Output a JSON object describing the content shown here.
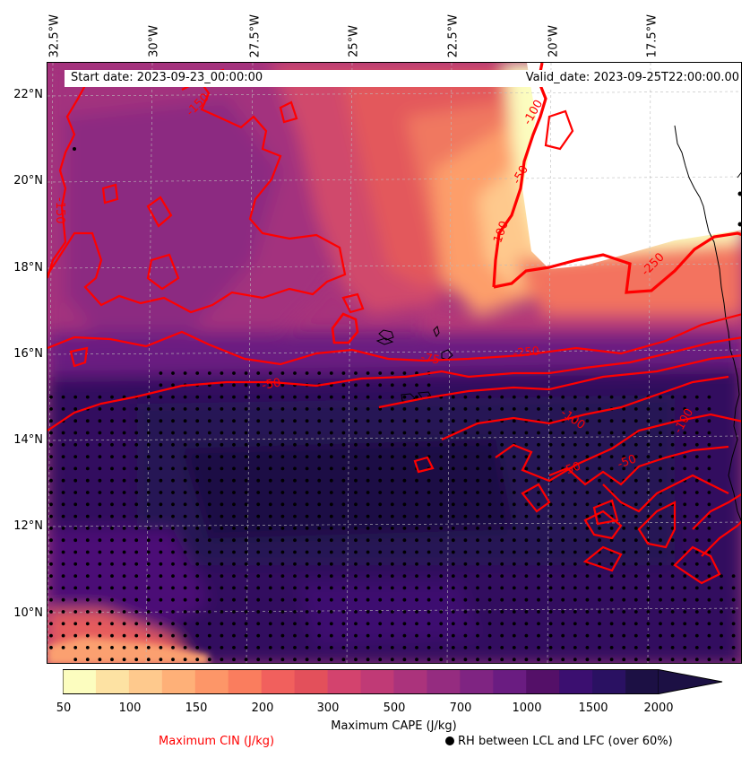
{
  "header": {
    "start_date": "Start date: 2023-09-23_00:00:00",
    "valid_date": "Valid_date: 2023-09-25T22:00:00.00"
  },
  "map": {
    "lon_labels": [
      "32.5°W",
      "30°W",
      "27.5°W",
      "25°W",
      "22.5°W",
      "20°W",
      "17.5°W"
    ],
    "lat_labels": [
      "22°N",
      "20°N",
      "18°N",
      "16°N",
      "14°N",
      "12°N",
      "10°N"
    ],
    "cin_contour_labels": [
      "-150",
      "-150",
      "-100",
      "-50",
      "-100",
      "-250",
      "-250",
      "-75",
      "-50",
      "-100",
      "-50",
      "-50",
      "-100"
    ],
    "colors": {
      "cin_contour": "#ff0000",
      "coastline": "#000000",
      "gridline": "#bbbbbb",
      "stipple": "#000000"
    },
    "dominant_fills": {
      "northeast_dry": "#fcfdbf",
      "northwest": "#b63679",
      "south_moist": "#251255"
    }
  },
  "colorbar": {
    "tick_labels": [
      "50",
      "100",
      "150",
      "200",
      "300",
      "500",
      "700",
      "1000",
      "1500",
      "2000"
    ],
    "levels": [
      50,
      75,
      100,
      125,
      150,
      175,
      200,
      250,
      300,
      400,
      500,
      600,
      700,
      850,
      1000,
      1250,
      1500,
      1750,
      2000
    ],
    "colors": [
      "#fcfdbf",
      "#fde2a3",
      "#fec98d",
      "#feb078",
      "#fd9668",
      "#fa7d5e",
      "#f1605d",
      "#e3505b",
      "#d3436e",
      "#c03a76",
      "#ab337c",
      "#952c80",
      "#7f2482",
      "#6a1c81",
      "#541068",
      "#3b0f70",
      "#2a1162",
      "#1c1044"
    ],
    "extend": "max",
    "label": "Maximum CAPE (J/kg)"
  },
  "legend": {
    "cin": "Maximum CIN (J/kg)",
    "rh": "RH between LCL and LFC (over 60%)"
  }
}
